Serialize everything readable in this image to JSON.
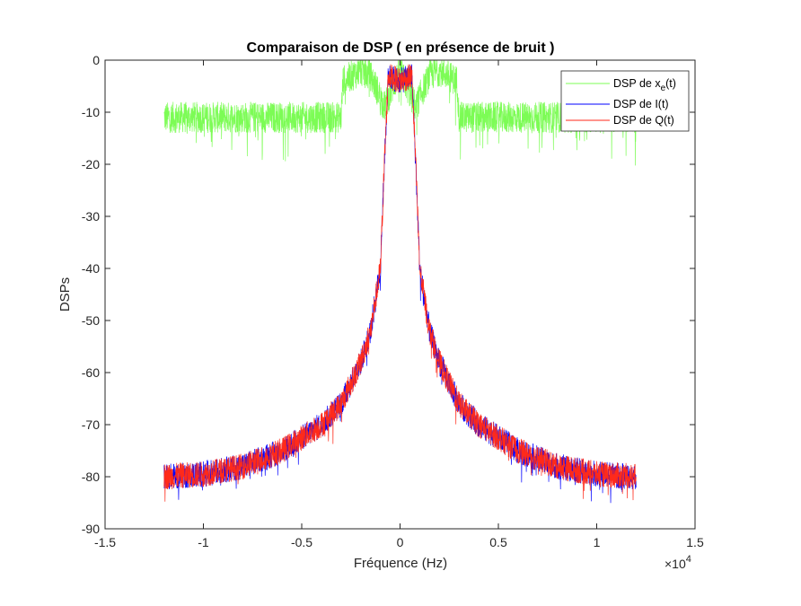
{
  "chart_data": {
    "type": "line",
    "title": "Comparaison de DSP ( en présence de bruit )",
    "xlabel": "Fréquence (Hz)",
    "ylabel": "DSPs",
    "x_exponent_label": "×10",
    "x_exponent_power": "4",
    "xlim": [
      -1.5,
      1.5
    ],
    "ylim": [
      -90,
      0
    ],
    "x_ticks": [
      -1.5,
      -1,
      -0.5,
      0,
      0.5,
      1,
      1.5
    ],
    "x_tick_labels": [
      "-1.5",
      "-1",
      "-0.5",
      "0",
      "0.5",
      "1",
      "1.5"
    ],
    "y_ticks": [
      0,
      -10,
      -20,
      -30,
      -40,
      -50,
      -60,
      -70,
      -80,
      -90
    ],
    "y_tick_labels": [
      "0",
      "-10",
      "-20",
      "-30",
      "-40",
      "-50",
      "-60",
      "-70",
      "-80",
      "-90"
    ],
    "grid": false,
    "legend_position": "top-right",
    "series": [
      {
        "name_main": "DSP de x",
        "name_sub": "e",
        "name_tail": "(t)",
        "color": "#7CFC55",
        "envelope": {
          "x": [
            -1.2,
            -0.89,
            -0.88,
            -0.6,
            -0.3,
            -0.29,
            -0.2,
            -0.15,
            -0.1,
            -0.08,
            0,
            0.08,
            0.1,
            0.15,
            0.2,
            0.29,
            0.3,
            0.6,
            0.88,
            0.89,
            1.2
          ],
          "y": [
            -11,
            -11,
            -11,
            -11,
            -11,
            -4,
            -2,
            -3,
            -7,
            -9,
            -2,
            -9,
            -7,
            -3,
            -2,
            -4,
            -11,
            -11,
            -11,
            -11,
            -11
          ]
        },
        "noise_amplitude": 3
      },
      {
        "name": "DSP de I(t)",
        "color": "#0000FF",
        "envelope": {
          "x": [
            -1.2,
            -1.0,
            -0.8,
            -0.6,
            -0.4,
            -0.3,
            -0.2,
            -0.15,
            -0.1,
            -0.08,
            -0.06,
            0,
            0.06,
            0.08,
            0.1,
            0.15,
            0.2,
            0.3,
            0.4,
            0.6,
            0.8,
            1.0,
            1.2
          ],
          "y": [
            -80,
            -79.5,
            -78,
            -75,
            -70,
            -66,
            -58,
            -52,
            -40,
            -20,
            -3,
            -4,
            -3,
            -20,
            -40,
            -52,
            -58,
            -66,
            -70,
            -75,
            -78,
            -79.5,
            -80
          ]
        },
        "noise_amplitude": 2.5
      },
      {
        "name": "DSP de Q(t)",
        "color": "#FF2A1A",
        "envelope": {
          "x": [
            -1.2,
            -1.0,
            -0.8,
            -0.6,
            -0.4,
            -0.3,
            -0.2,
            -0.15,
            -0.1,
            -0.08,
            -0.06,
            0,
            0.06,
            0.08,
            0.1,
            0.15,
            0.2,
            0.3,
            0.4,
            0.6,
            0.8,
            1.0,
            1.2
          ],
          "y": [
            -80,
            -79.5,
            -78,
            -75,
            -70,
            -66,
            -58,
            -52,
            -40,
            -20,
            -3,
            -4,
            -3,
            -20,
            -40,
            -52,
            -58,
            -66,
            -70,
            -75,
            -78,
            -79.5,
            -80
          ]
        },
        "noise_amplitude": 2.5
      }
    ]
  }
}
